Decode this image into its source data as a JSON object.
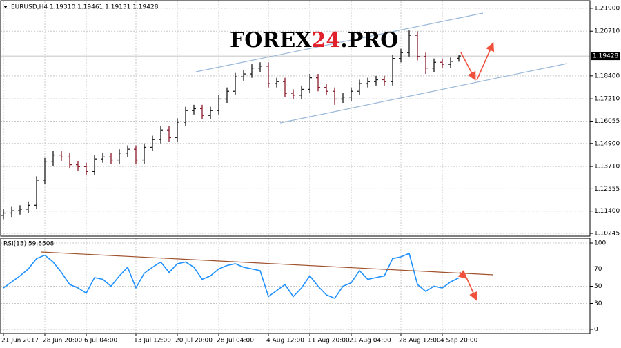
{
  "chart_data": [
    {
      "type": "ohlc",
      "title": "EURUSD,H4  1.19310 1.19461 1.19131 1.19428",
      "watermark": [
        "FOREX",
        "24",
        ".PRO"
      ],
      "ylim": [
        1.10103,
        1.22255
      ],
      "yticks": [
        {
          "value": 1.219,
          "label": "1.21900"
        },
        {
          "value": 1.2071,
          "label": "1.20710"
        },
        {
          "value": 1.184,
          "label": "1.18400"
        },
        {
          "value": 1.1721,
          "label": "1.17210"
        },
        {
          "value": 1.16055,
          "label": "1.16055"
        },
        {
          "value": 1.149,
          "label": "1.14900"
        },
        {
          "value": 1.1371,
          "label": "1.13710"
        },
        {
          "value": 1.12555,
          "label": "1.12555"
        },
        {
          "value": 1.114,
          "label": "1.11400"
        },
        {
          "value": 1.10245,
          "label": "1.10245"
        }
      ],
      "last_price": 1.19428,
      "grid": true,
      "up_color": "#1a1a1a",
      "down_color": "#8b1a2b",
      "open": [
        1.1118,
        1.113,
        1.1142,
        1.115,
        1.117,
        1.13,
        1.1395,
        1.143,
        1.142,
        1.138,
        1.137,
        1.1345,
        1.141,
        1.142,
        1.1405,
        1.144,
        1.146,
        1.1405,
        1.147,
        1.151,
        1.156,
        1.152,
        1.16,
        1.166,
        1.167,
        1.1635,
        1.166,
        1.172,
        1.176,
        1.1835,
        1.185,
        1.188,
        1.189,
        1.18,
        1.181,
        1.175,
        1.174,
        1.177,
        1.183,
        1.178,
        1.176,
        1.172,
        1.173,
        1.176,
        1.18,
        1.181,
        1.182,
        1.181,
        1.193,
        1.196,
        1.205,
        1.194,
        1.188,
        1.191,
        1.19,
        1.1931
      ],
      "high": [
        1.115,
        1.1162,
        1.117,
        1.119,
        1.132,
        1.1415,
        1.145,
        1.145,
        1.144,
        1.14,
        1.139,
        1.143,
        1.144,
        1.144,
        1.146,
        1.148,
        1.148,
        1.149,
        1.153,
        1.158,
        1.158,
        1.162,
        1.168,
        1.169,
        1.169,
        1.168,
        1.174,
        1.178,
        1.1855,
        1.187,
        1.19,
        1.191,
        1.191,
        1.183,
        1.183,
        1.177,
        1.179,
        1.185,
        1.185,
        1.18,
        1.178,
        1.175,
        1.178,
        1.182,
        1.183,
        1.184,
        1.184,
        1.195,
        1.198,
        1.2075,
        1.207,
        1.196,
        1.193,
        1.193,
        1.1935,
        1.19461
      ],
      "low": [
        1.1098,
        1.111,
        1.1122,
        1.113,
        1.115,
        1.128,
        1.1375,
        1.14,
        1.136,
        1.135,
        1.1325,
        1.1325,
        1.139,
        1.1385,
        1.1385,
        1.142,
        1.1385,
        1.1385,
        1.145,
        1.149,
        1.15,
        1.15,
        1.158,
        1.164,
        1.1615,
        1.1615,
        1.164,
        1.17,
        1.174,
        1.1815,
        1.183,
        1.186,
        1.178,
        1.178,
        1.173,
        1.172,
        1.172,
        1.175,
        1.176,
        1.174,
        1.169,
        1.17,
        1.171,
        1.174,
        1.178,
        1.179,
        1.179,
        1.179,
        1.191,
        1.194,
        1.192,
        1.185,
        1.186,
        1.188,
        1.188,
        1.19131
      ],
      "close": [
        1.113,
        1.1142,
        1.115,
        1.117,
        1.13,
        1.1395,
        1.143,
        1.142,
        1.138,
        1.137,
        1.1345,
        1.141,
        1.142,
        1.1405,
        1.144,
        1.146,
        1.1405,
        1.147,
        1.151,
        1.156,
        1.152,
        1.16,
        1.166,
        1.167,
        1.1635,
        1.166,
        1.172,
        1.176,
        1.1835,
        1.185,
        1.188,
        1.189,
        1.18,
        1.181,
        1.175,
        1.174,
        1.177,
        1.183,
        1.178,
        1.176,
        1.172,
        1.173,
        1.176,
        1.18,
        1.181,
        1.182,
        1.181,
        1.193,
        1.196,
        1.205,
        1.194,
        1.188,
        1.191,
        1.19,
        1.1915,
        1.19428
      ]
    },
    {
      "type": "line",
      "title": "RSI(13) 59.6508",
      "categories": [
        "21 Jun 2017",
        null,
        null,
        null,
        null,
        "28 Jun 20:00",
        null,
        null,
        null,
        null,
        "6 Jul 04:00",
        null,
        null,
        null,
        null,
        null,
        "13 Jul 12:00",
        null,
        null,
        null,
        null,
        "20 Jul 20:00",
        null,
        null,
        null,
        null,
        "28 Jul 04:00",
        null,
        null,
        null,
        null,
        null,
        "4 Aug 12:00",
        null,
        null,
        null,
        null,
        "11 Aug 20:00",
        null,
        null,
        null,
        null,
        "21 Aug 04:00",
        null,
        null,
        null,
        null,
        null,
        "28 Aug 12:00",
        null,
        null,
        null,
        null,
        "4 Sep 20:00",
        null,
        null
      ],
      "ylim": [
        -4.8,
        105.6
      ],
      "yticks": [
        100,
        70,
        50,
        30,
        0
      ],
      "grid": true,
      "color": "#1e90ff",
      "values": [
        48,
        55,
        62,
        70,
        82,
        86,
        78,
        66,
        52,
        48,
        42,
        60,
        58,
        50,
        62,
        72,
        48,
        65,
        72,
        78,
        66,
        76,
        78,
        72,
        58,
        62,
        70,
        74,
        76,
        72,
        70,
        68,
        38,
        45,
        52,
        38,
        48,
        62,
        50,
        40,
        36,
        50,
        54,
        68,
        58,
        60,
        62,
        82,
        84,
        88,
        52,
        44,
        50,
        48,
        55,
        59.6508
      ]
    }
  ]
}
